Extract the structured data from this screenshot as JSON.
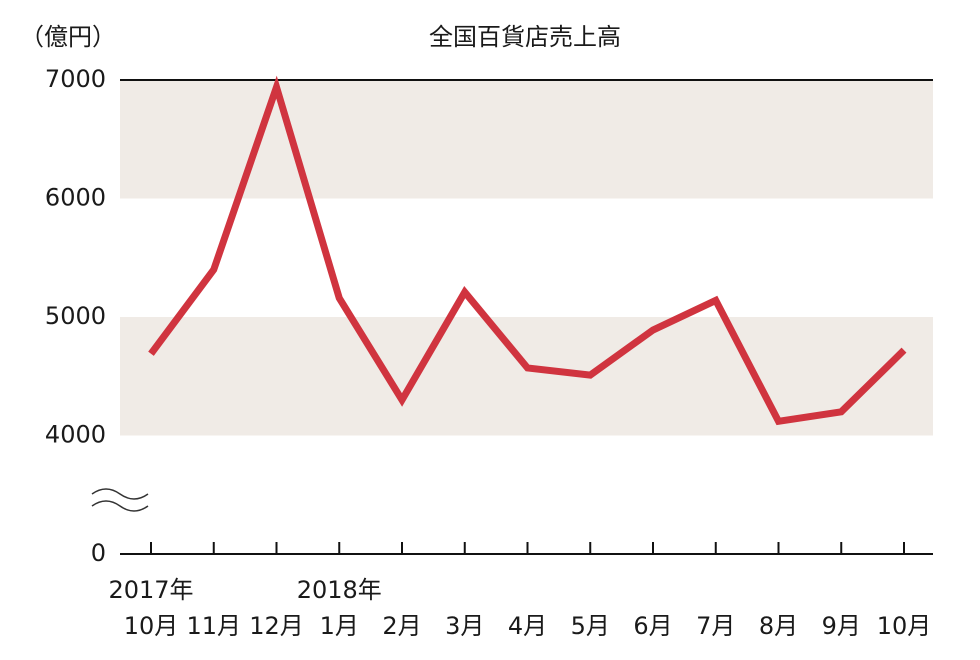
{
  "chart_data": {
    "type": "line",
    "title": "全国百貨店売上高",
    "y_label": "（億円）",
    "categories": [
      "10月",
      "11月",
      "12月",
      "1月",
      "2月",
      "3月",
      "4月",
      "5月",
      "6月",
      "7月",
      "8月",
      "9月",
      "10月"
    ],
    "year_labels": [
      "2017年",
      null,
      null,
      "2018年",
      null,
      null,
      null,
      null,
      null,
      null,
      null,
      null,
      null
    ],
    "series": [
      {
        "name": "全国百貨店売上高",
        "color": "#d0343f",
        "values": [
          4690,
          5400,
          6940,
          5160,
          4300,
          5210,
          4570,
          4510,
          4890,
          5140,
          4120,
          4200,
          4720
        ]
      }
    ],
    "ylim": [
      0,
      7000
    ],
    "yticks": [
      0,
      4000,
      5000,
      6000,
      7000
    ],
    "axis_break": true,
    "band_color": "#f0ebe6"
  }
}
